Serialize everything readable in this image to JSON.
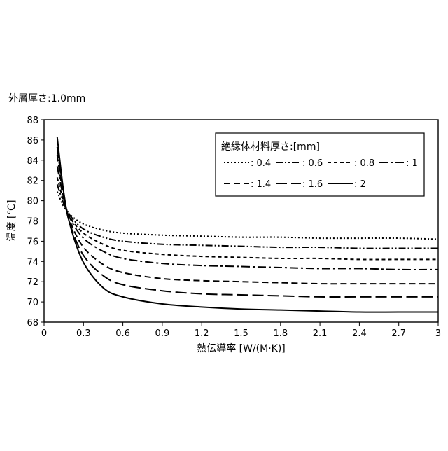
{
  "chart_data": {
    "type": "line",
    "note": "外層厚さ:1.0mm",
    "xlabel": "熱伝導率 [W/(M·K)]",
    "ylabel": "温度 [℃]",
    "xlim": [
      0,
      3
    ],
    "ylim": [
      68,
      88
    ],
    "xticks": [
      "0",
      "0.3",
      "0.6",
      "0.9",
      "1.2",
      "1.5",
      "1.8",
      "2.1",
      "2.4",
      "2.7",
      "3"
    ],
    "yticks": [
      "68",
      "70",
      "72",
      "74",
      "76",
      "78",
      "80",
      "82",
      "84",
      "86",
      "88"
    ],
    "grid": false,
    "legend_title": "絶縁体材料厚さ:[mm]",
    "legend_position": "top-right",
    "x": [
      0.1,
      0.15,
      0.2,
      0.3,
      0.45,
      0.6,
      0.9,
      1.2,
      1.5,
      1.8,
      2.1,
      2.4,
      2.7,
      3.0
    ],
    "series": [
      {
        "name": ": 0.4",
        "dash": "dotted",
        "values": [
          80.9,
          79.4,
          78.6,
          77.7,
          77.1,
          76.8,
          76.6,
          76.5,
          76.4,
          76.4,
          76.3,
          76.3,
          76.3,
          76.2
        ]
      },
      {
        "name": ": 0.6",
        "dash": "dash-dot-dot",
        "values": [
          81.6,
          79.7,
          78.5,
          77.2,
          76.4,
          76.0,
          75.7,
          75.6,
          75.5,
          75.4,
          75.4,
          75.3,
          75.3,
          75.3
        ]
      },
      {
        "name": ": 0.8",
        "dash": "short-dash",
        "values": [
          82.3,
          79.9,
          78.3,
          76.8,
          75.7,
          75.1,
          74.7,
          74.5,
          74.4,
          74.3,
          74.3,
          74.2,
          74.2,
          74.2
        ]
      },
      {
        "name": ": 1",
        "dash": "dash-dot",
        "values": [
          83.4,
          80.2,
          78.2,
          76.3,
          75.0,
          74.3,
          73.8,
          73.6,
          73.5,
          73.4,
          73.3,
          73.3,
          73.2,
          73.2
        ]
      },
      {
        "name": ": 1.4",
        "dash": "dash",
        "values": [
          84.5,
          80.3,
          77.9,
          75.4,
          73.7,
          72.9,
          72.3,
          72.1,
          72.0,
          71.9,
          71.8,
          71.8,
          71.8,
          71.8
        ]
      },
      {
        "name": ": 1.6",
        "dash": "long-dash",
        "values": [
          85.3,
          80.5,
          77.6,
          74.6,
          72.6,
          71.7,
          71.1,
          70.8,
          70.7,
          70.6,
          70.5,
          70.5,
          70.5,
          70.5
        ]
      },
      {
        "name": ": 2",
        "dash": "solid",
        "values": [
          86.3,
          80.8,
          77.5,
          73.9,
          71.4,
          70.5,
          69.8,
          69.5,
          69.3,
          69.2,
          69.1,
          69.0,
          69.0,
          69.0
        ]
      }
    ]
  }
}
